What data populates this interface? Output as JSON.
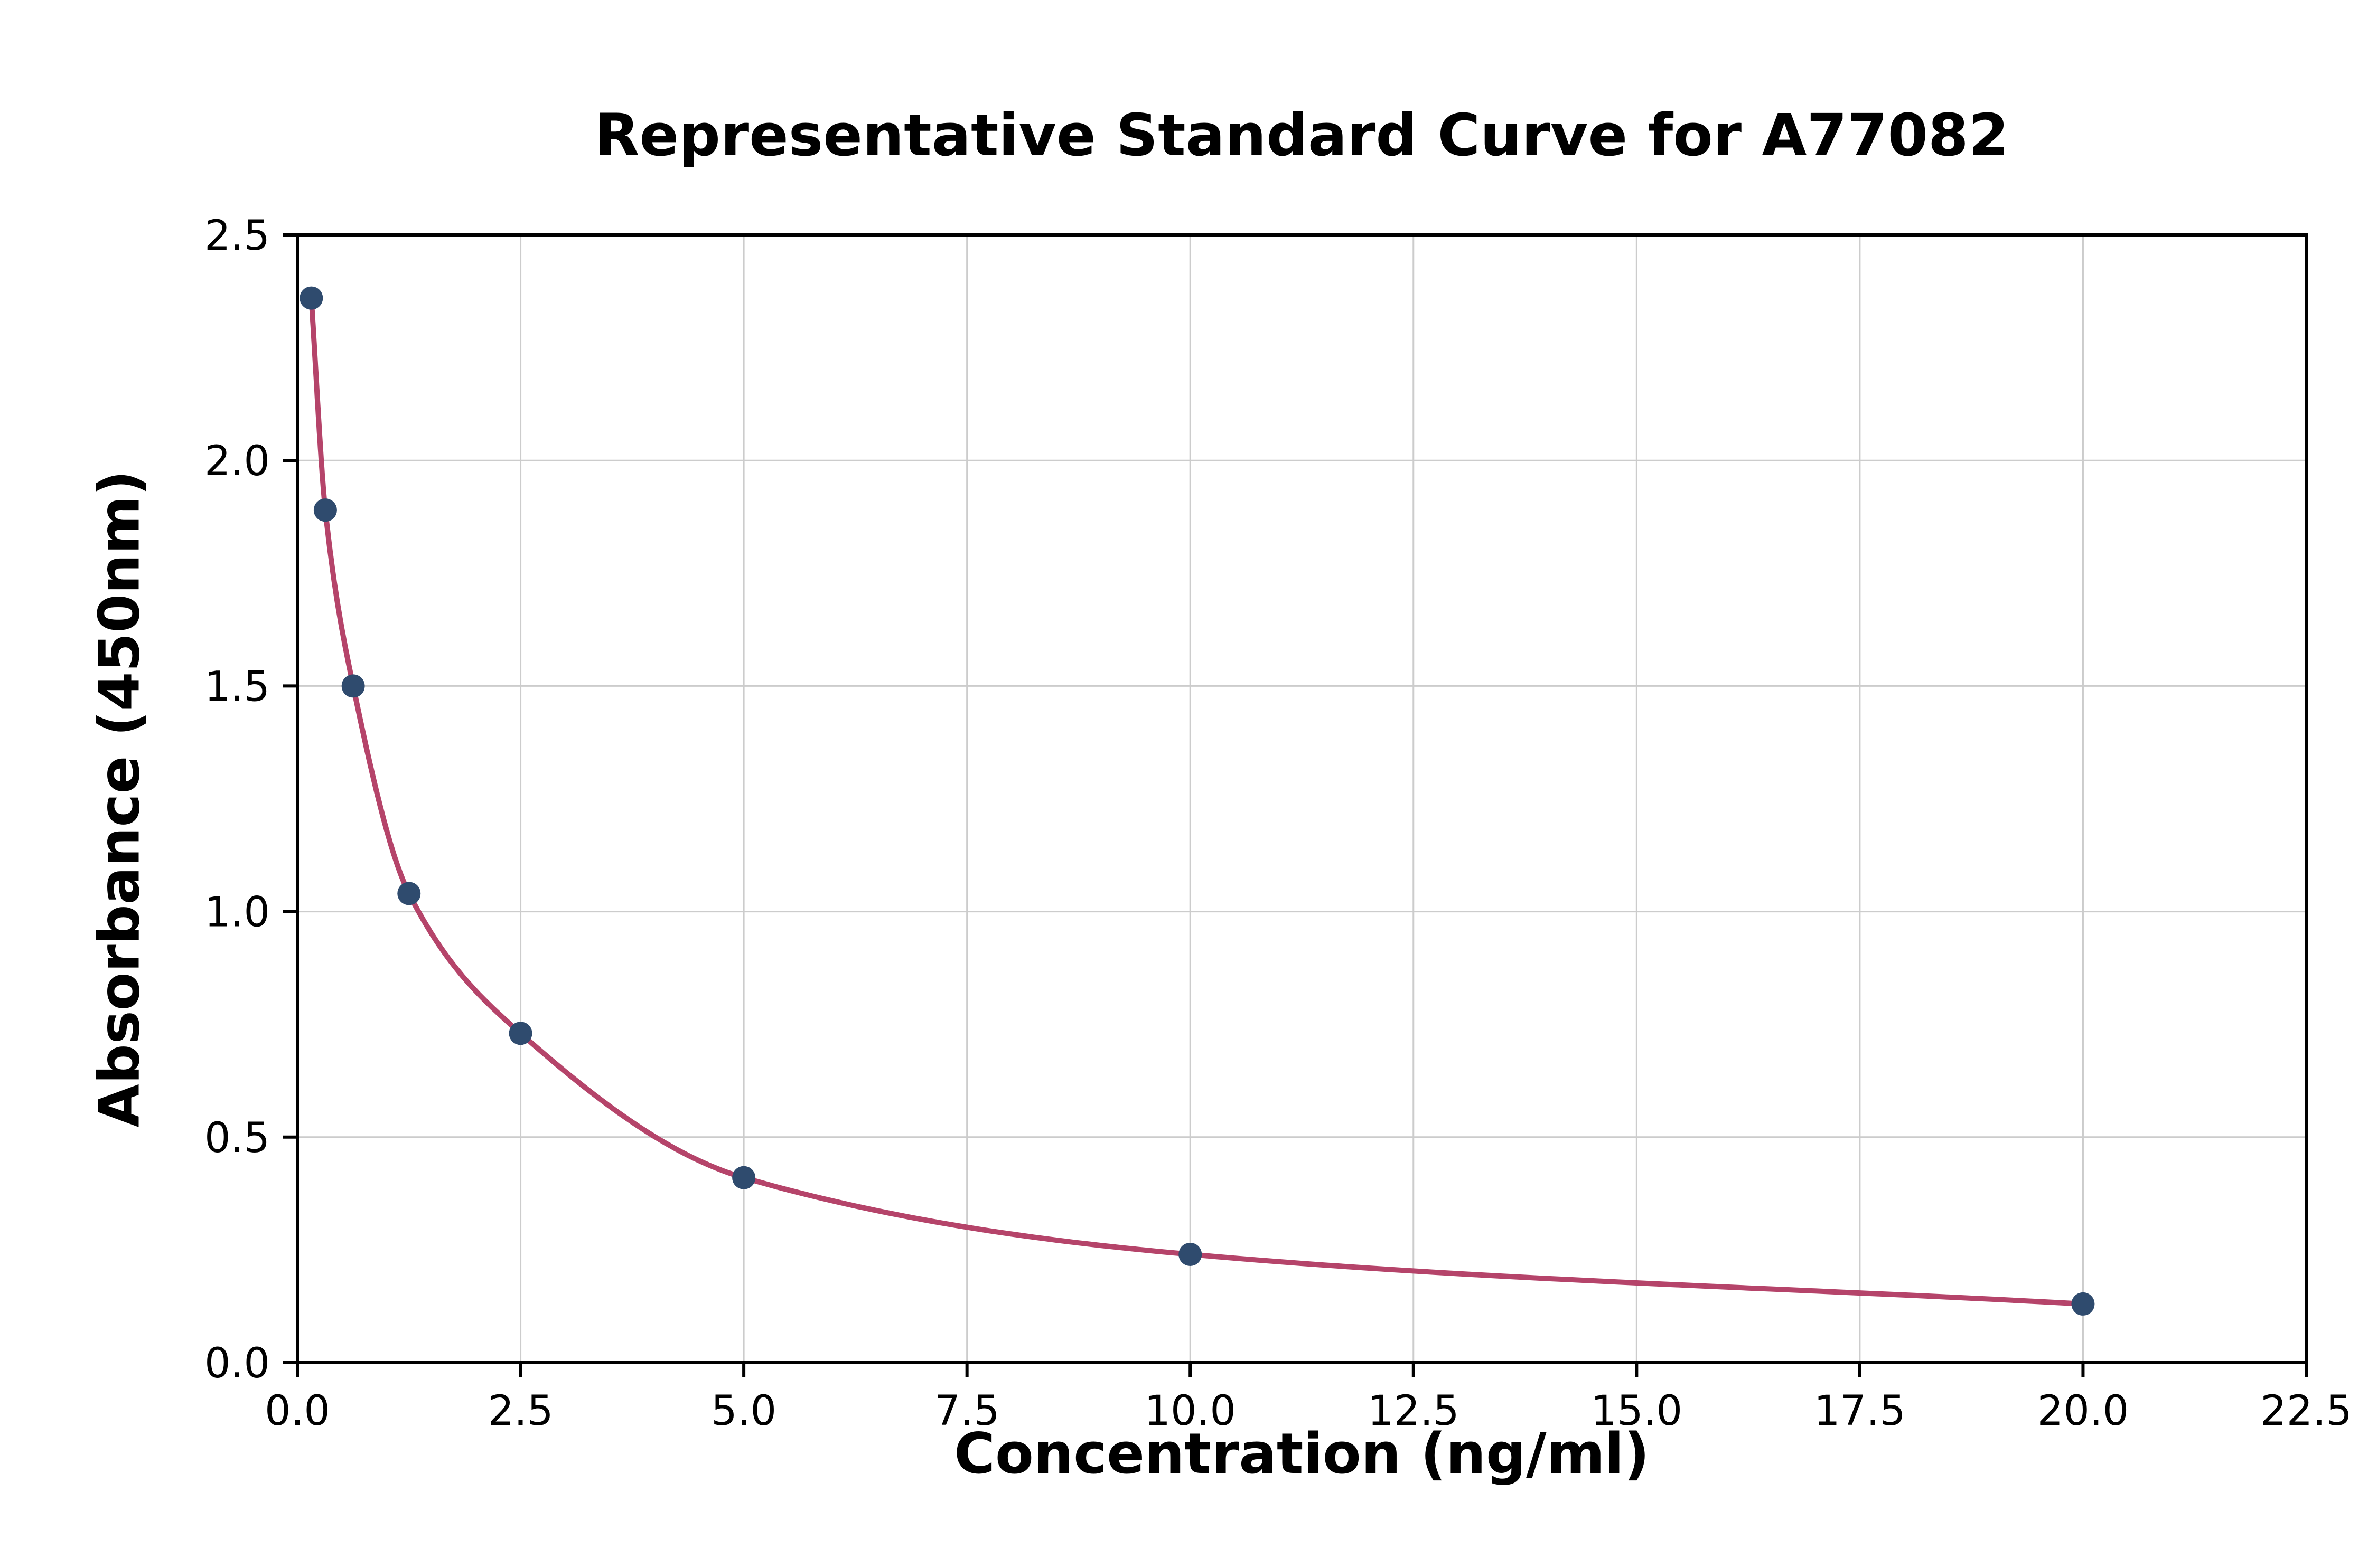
{
  "chart_data": {
    "type": "scatter",
    "title": "Representative Standard Curve for A77082",
    "xlabel": "Concentration (ng/ml)",
    "ylabel": "Absorbance (450nm)",
    "xlim": [
      0,
      22.5
    ],
    "ylim": [
      0,
      2.5
    ],
    "xticks": [
      0.0,
      2.5,
      5.0,
      7.5,
      10.0,
      12.5,
      15.0,
      17.5,
      20.0,
      22.5
    ],
    "yticks": [
      0.0,
      0.5,
      1.0,
      1.5,
      2.0,
      2.5
    ],
    "grid": true,
    "legend_position": "none",
    "points": [
      {
        "x": 0.156,
        "y": 2.36
      },
      {
        "x": 0.313,
        "y": 1.89
      },
      {
        "x": 0.625,
        "y": 1.5
      },
      {
        "x": 1.25,
        "y": 1.04
      },
      {
        "x": 2.5,
        "y": 0.73
      },
      {
        "x": 5.0,
        "y": 0.41
      },
      {
        "x": 10.0,
        "y": 0.24
      },
      {
        "x": 20.0,
        "y": 0.13
      }
    ],
    "curve": {
      "name": "4PL standard curve fit",
      "style": "smooth curve through standard points"
    },
    "colors": {
      "marker": "#2f4b6e",
      "curve": "#b5446a",
      "grid": "#cccccc",
      "axis": "#000000",
      "background": "#ffffff"
    }
  }
}
